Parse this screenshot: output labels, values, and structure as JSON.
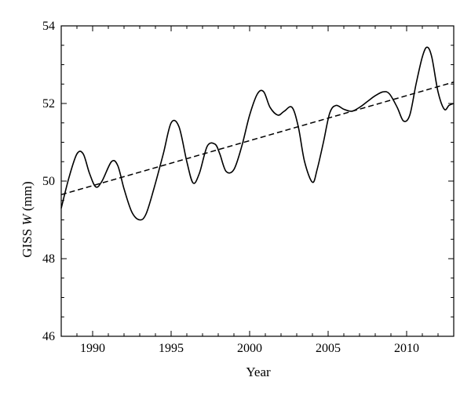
{
  "chart_data": {
    "type": "line",
    "title": "",
    "xlabel": "Year",
    "ylabel": {
      "prefix": "GISS ",
      "variable": "W",
      "suffix": " (mm)"
    },
    "xlim": [
      1988,
      2013
    ],
    "ylim": [
      46,
      54
    ],
    "xticks": [
      1990,
      1995,
      2000,
      2005,
      2010
    ],
    "yticks": [
      46,
      48,
      50,
      52,
      54
    ],
    "grid": false,
    "legend": "none",
    "series": [
      {
        "style": "solid",
        "color": "#000000",
        "x": [
          1988.0,
          1988.5,
          1989.0,
          1989.4,
          1989.8,
          1990.2,
          1990.6,
          1991.2,
          1991.6,
          1992.0,
          1992.5,
          1993.0,
          1993.4,
          1993.9,
          1994.5,
          1995.0,
          1995.5,
          1996.0,
          1996.4,
          1996.8,
          1997.3,
          1997.8,
          1998.1,
          1998.5,
          1999.0,
          1999.5,
          2000.0,
          2000.5,
          2000.9,
          2001.3,
          2001.8,
          2002.2,
          2002.7,
          2003.1,
          2003.5,
          2004.0,
          2004.3,
          2004.7,
          2005.1,
          2005.5,
          2006.0,
          2006.5,
          2007.0,
          2007.5,
          2008.0,
          2008.5,
          2008.9,
          2009.4,
          2009.8,
          2010.2,
          2010.6,
          2011.0,
          2011.3,
          2011.6,
          2012.0,
          2012.4,
          2012.7,
          2013.0
        ],
        "y": [
          49.3,
          50.1,
          50.7,
          50.7,
          50.2,
          49.85,
          50.0,
          50.5,
          50.4,
          49.8,
          49.2,
          49.0,
          49.15,
          49.8,
          50.7,
          51.5,
          51.4,
          50.5,
          49.95,
          50.2,
          50.9,
          50.95,
          50.7,
          50.25,
          50.3,
          50.9,
          51.7,
          52.25,
          52.3,
          51.9,
          51.7,
          51.8,
          51.9,
          51.4,
          50.5,
          49.97,
          50.3,
          51.0,
          51.75,
          51.95,
          51.85,
          51.8,
          51.9,
          52.05,
          52.2,
          52.3,
          52.25,
          51.9,
          51.55,
          51.7,
          52.5,
          53.2,
          53.45,
          53.2,
          52.3,
          51.85,
          51.95,
          52.0
        ]
      },
      {
        "style": "dashed",
        "color": "#000000",
        "x": [
          1988.0,
          2013.0
        ],
        "y": [
          49.65,
          52.55
        ]
      }
    ]
  }
}
